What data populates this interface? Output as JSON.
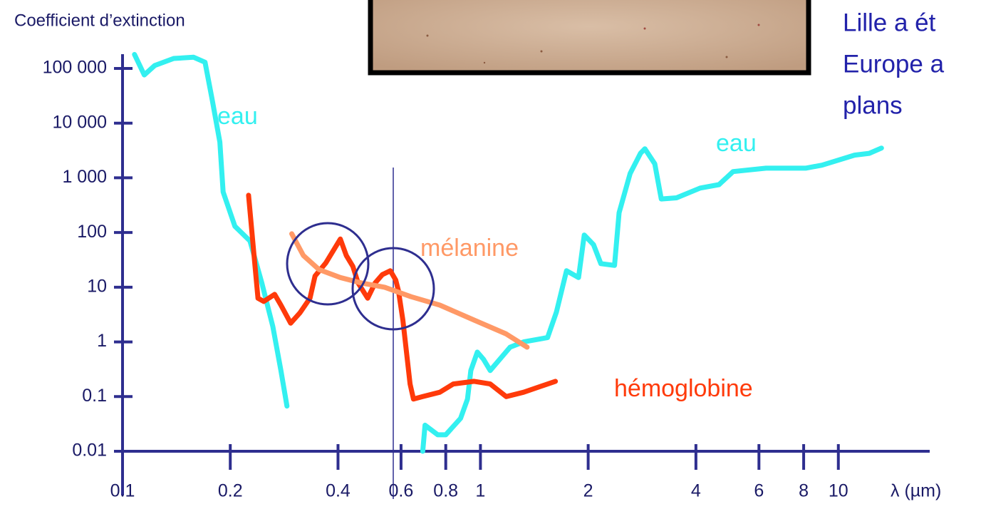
{
  "chart_data": {
    "type": "line",
    "y_label": "Coefficient d’extinction",
    "x_label": "λ (µm)",
    "xscale": "log",
    "yscale": "log",
    "xlim": [
      0.1,
      18
    ],
    "ylim": [
      0.01,
      100000
    ],
    "xticks": [
      0.1,
      0.2,
      0.4,
      0.6,
      0.8,
      1,
      2,
      4,
      6,
      8,
      10
    ],
    "yticks": [
      0.01,
      0.1,
      1,
      10,
      100,
      {
        "value": 1000,
        "label": "1 000"
      },
      {
        "value": 10000,
        "label": "10 000"
      },
      {
        "value": 100000,
        "label": "100 000"
      }
    ],
    "axis_color": "#2e2e8f",
    "side_text": [
      "Lille a ét",
      "Europe a",
      "plans"
    ],
    "series": [
      {
        "name": "eau",
        "color": "#33f0f0",
        "x": [
          0.108,
          0.115,
          0.123,
          0.139,
          0.158,
          0.17,
          0.178,
          0.187,
          0.191,
          0.206,
          0.227,
          0.245,
          0.263,
          0.277,
          0.288,
          null,
          0.69,
          0.7,
          0.76,
          0.8,
          0.88,
          0.92,
          0.94,
          0.98,
          1.02,
          1.065,
          1.21,
          1.32,
          1.54,
          1.63,
          1.74,
          1.88,
          1.95,
          2.07,
          2.17,
          2.37,
          2.44,
          2.62,
          2.8,
          2.88,
          3.07,
          3.2,
          3.53,
          4.11,
          4.64,
          5.08,
          6.28,
          8.1,
          9.0,
          11.1,
          12.2,
          13.2
        ],
        "values": [
          180000,
          76000,
          113000,
          152000,
          160000,
          130000,
          27000,
          4500,
          550,
          130,
          70,
          12,
          1.9,
          0.3,
          0.067,
          null,
          0.01,
          0.03,
          0.02,
          0.02,
          0.04,
          0.09,
          0.3,
          0.65,
          0.48,
          0.3,
          0.8,
          1,
          1.2,
          3.5,
          20,
          15,
          90,
          60,
          27,
          25,
          230,
          1200,
          2800,
          3400,
          1800,
          410,
          430,
          650,
          750,
          1300,
          1500,
          1500,
          1700,
          2600,
          2800,
          3500
        ]
      },
      {
        "name": "hémoglobine",
        "color": "#ff3a0a",
        "x": [
          0.225,
          0.233,
          0.239,
          0.248,
          0.266,
          0.277,
          0.295,
          0.313,
          0.334,
          0.345,
          0.37,
          0.406,
          0.422,
          0.44,
          0.455,
          0.484,
          0.508,
          0.532,
          0.56,
          0.58,
          0.59,
          0.607,
          0.636,
          0.65,
          0.69,
          0.77,
          0.84,
          0.96,
          1.065,
          1.18,
          1.32,
          1.62
        ],
        "values": [
          480,
          38,
          6.3,
          5.5,
          7.4,
          4.7,
          2.2,
          3.4,
          6.3,
          16,
          28,
          76,
          38,
          24,
          12,
          6.3,
          12,
          17,
          20,
          13.5,
          8.6,
          2.5,
          0.17,
          0.09,
          0.1,
          0.12,
          0.17,
          0.19,
          0.17,
          0.1,
          0.12,
          0.19
        ]
      },
      {
        "name": "mélanine",
        "color": "#ff9966",
        "x": [
          0.297,
          0.32,
          0.354,
          0.406,
          0.464,
          0.54,
          0.64,
          0.77,
          0.96,
          1.18,
          1.35
        ],
        "values": [
          95,
          38,
          21,
          15,
          12,
          10,
          6.7,
          4.7,
          2.5,
          1.4,
          0.8
        ]
      }
    ]
  }
}
